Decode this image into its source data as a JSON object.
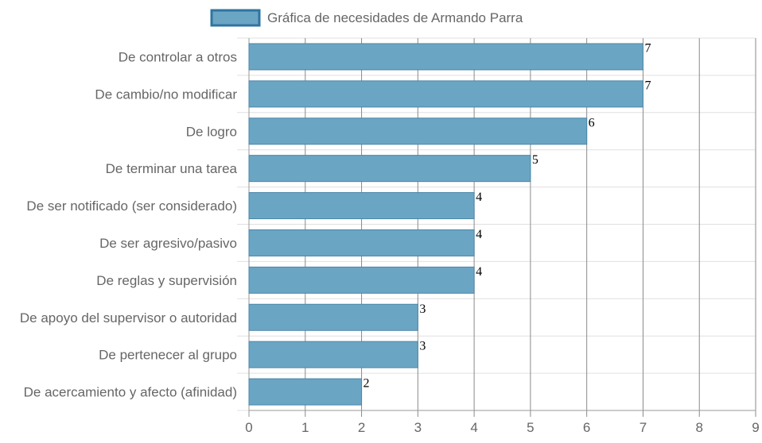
{
  "chart_data": {
    "type": "bar",
    "orientation": "horizontal",
    "categories": [
      "De controlar a otros",
      "De cambio/no modificar",
      "De logro",
      "De terminar una tarea",
      "De ser notificado (ser considerado)",
      "De ser agresivo/pasivo",
      "De reglas y supervisión",
      "De apoyo del supervisor o autoridad",
      "De pertenecer al grupo",
      "De acercamiento y afecto (afinidad)"
    ],
    "series": [
      {
        "name": "Gráfica de necesidades de Armando Parra",
        "values": [
          7,
          7,
          6,
          5,
          4,
          4,
          4,
          3,
          3,
          2
        ]
      }
    ],
    "xlim": [
      0,
      9
    ],
    "xticks": [
      "0",
      "1",
      "2",
      "3",
      "4",
      "5",
      "6",
      "7",
      "8",
      "9"
    ],
    "grid": true,
    "legend": "top",
    "data_labels": true,
    "colors": {
      "bar_fill": "#6ba5c4",
      "bar_stroke": "#4a86a8",
      "legend_swatch_fill": "#6ba5c4",
      "legend_swatch_stroke": "#2f74a0",
      "grid": "#e0e0e0",
      "vertical_grid": "#8a8a8a",
      "text": "#666666"
    }
  }
}
